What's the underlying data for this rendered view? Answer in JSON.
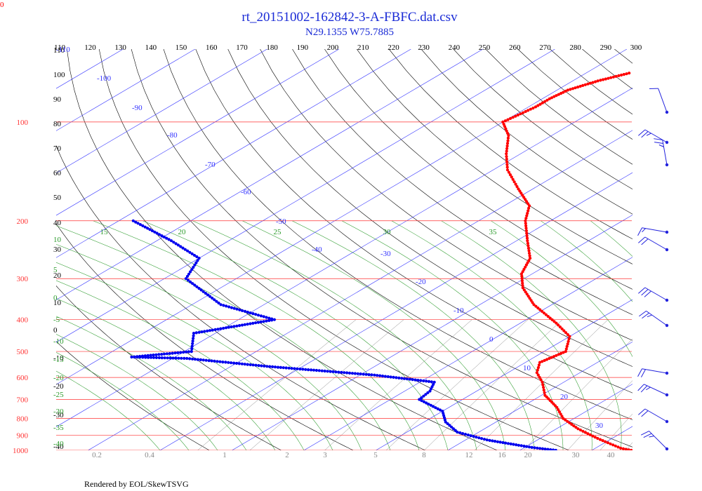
{
  "chart_data": {
    "type": "skew-t",
    "corner_label": "0",
    "title": "rt_20151002-162842-3-A-FBFC.dat.csv",
    "subtitle": "N29.1355 W75.7885",
    "footer": "Rendered by EOL/SkewTSVG",
    "pressure_levels": [
      100,
      200,
      300,
      400,
      500,
      600,
      700,
      800,
      900,
      1000
    ],
    "top_temperature_ticks": [
      110,
      120,
      130,
      140,
      150,
      160,
      170,
      180,
      190,
      200,
      210,
      220,
      230,
      240,
      250,
      260,
      270,
      280,
      290,
      300
    ],
    "left_theta_labels": [
      "110",
      "100",
      "90",
      "80",
      "70",
      "60",
      "50",
      "40",
      "30",
      "20",
      "10",
      "0",
      "-10",
      "-20",
      "-30",
      "-40"
    ],
    "mixing_ratio_labels": [
      "0.2",
      "0.4",
      "1",
      "2",
      "3",
      "5",
      "8",
      "12",
      "16",
      "20",
      "30",
      "40"
    ],
    "theta_e_labels": [
      "15",
      "20",
      "25",
      "30",
      "35"
    ],
    "theta_e_left_labels": [
      "10",
      "5",
      "0",
      "-5",
      "-10",
      "-15",
      "-20",
      "-25",
      "-30",
      "-35",
      "-40"
    ],
    "isotherm_labels": [
      "-100",
      "-90",
      "-80",
      "-70",
      "-60",
      "-50",
      "-40",
      "-30",
      "-20",
      "-10",
      "0",
      "10",
      "20",
      "30"
    ],
    "temperature_profile": [
      [
        -64.0,
        71
      ],
      [
        -66.5,
        75
      ],
      [
        -68.5,
        80
      ],
      [
        -69.0,
        85
      ],
      [
        -69.0,
        90
      ],
      [
        -70.0,
        100
      ],
      [
        -66.0,
        110
      ],
      [
        -62.0,
        125
      ],
      [
        -58.0,
        140
      ],
      [
        -52.0,
        160
      ],
      [
        -46.5,
        180
      ],
      [
        -43.5,
        200
      ],
      [
        -38.5,
        230
      ],
      [
        -34.0,
        260
      ],
      [
        -31.5,
        290
      ],
      [
        -28.0,
        320
      ],
      [
        -22.5,
        360
      ],
      [
        -15.0,
        410
      ],
      [
        -10.0,
        450
      ],
      [
        -7.0,
        500
      ],
      [
        -8.0,
        540
      ],
      [
        -6.0,
        580
      ],
      [
        -3.0,
        620
      ],
      [
        0.5,
        680
      ],
      [
        5.0,
        740
      ],
      [
        8.5,
        800
      ],
      [
        13.0,
        860
      ],
      [
        18.0,
        920
      ],
      [
        23.5,
        985
      ],
      [
        25.5,
        1000
      ]
    ],
    "dewpoint_profile": [
      [
        -98.0,
        200
      ],
      [
        -88.0,
        230
      ],
      [
        -80.0,
        260
      ],
      [
        -77.0,
        300
      ],
      [
        -66.0,
        360
      ],
      [
        -55.0,
        400
      ],
      [
        -63.0,
        440
      ],
      [
        -59.0,
        500
      ],
      [
        -66.0,
        520
      ],
      [
        -58.0,
        525
      ],
      [
        -45.0,
        555
      ],
      [
        -28.0,
        590
      ],
      [
        -18.0,
        620
      ],
      [
        -16.5,
        660
      ],
      [
        -16.0,
        700
      ],
      [
        -10.0,
        760
      ],
      [
        -7.0,
        820
      ],
      [
        -3.0,
        880
      ],
      [
        3.0,
        930
      ],
      [
        11.0,
        980
      ],
      [
        15.0,
        1000
      ]
    ],
    "wind_barbs": [
      {
        "label": "barb-1",
        "speed_kt": 10,
        "direction": 340
      },
      {
        "label": "barb-2",
        "speed_kt": 25,
        "direction": 300
      },
      {
        "label": "barb-3",
        "speed_kt": 25,
        "direction": 350
      },
      {
        "label": "barb-4",
        "speed_kt": 15,
        "direction": 280
      },
      {
        "label": "barb-5",
        "speed_kt": 20,
        "direction": 300
      },
      {
        "label": "barb-6",
        "speed_kt": 30,
        "direction": 300
      },
      {
        "label": "barb-7",
        "speed_kt": 25,
        "direction": 305
      },
      {
        "label": "barb-8",
        "speed_kt": 20,
        "direction": 280
      },
      {
        "label": "barb-9",
        "speed_kt": 25,
        "direction": 295
      },
      {
        "label": "barb-10",
        "speed_kt": 20,
        "direction": 300
      },
      {
        "label": "barb-11",
        "speed_kt": 25,
        "direction": 315
      }
    ],
    "colors": {
      "title": "#1a2bd6",
      "isobar": "#ff3333",
      "isotherm": "#3333ff",
      "dry_adiabat": "#000000",
      "moist_adiabat": "#2a9a2a",
      "mixing_ratio": "#888888",
      "temperature": "#ff0000",
      "dewpoint": "#0000ee",
      "wind": "#2222dd"
    }
  }
}
